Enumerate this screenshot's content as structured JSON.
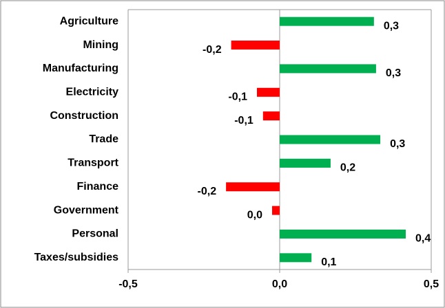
{
  "chart_data": {
    "type": "barh",
    "categories": [
      "Agriculture",
      "Mining",
      "Manufacturing",
      "Electricity",
      "Construction",
      "Trade",
      "Transport",
      "Finance",
      "Government",
      "Personal",
      "Taxes/subsidies"
    ],
    "values": [
      0.311,
      -0.16,
      0.318,
      -0.075,
      -0.055,
      0.332,
      0.168,
      -0.177,
      -0.025,
      0.416,
      0.105
    ],
    "value_labels": [
      "0,3",
      "-0,2",
      "0,3",
      "-0,1",
      "-0,1",
      "0,3",
      "0,2",
      "-0,2",
      "0,0",
      "0,4",
      "0,1"
    ],
    "colors": [
      "#00b050",
      "#ff0000",
      "#00b050",
      "#ff0000",
      "#ff0000",
      "#00b050",
      "#00b050",
      "#ff0000",
      "#ff0000",
      "#00b050",
      "#00b050"
    ],
    "xlim": [
      -0.5,
      0.5
    ],
    "xticks": [
      {
        "value": -0.5,
        "label": "-0,5"
      },
      {
        "value": 0,
        "label": "0,0"
      },
      {
        "value": 0.5,
        "label": "0,5"
      }
    ]
  }
}
